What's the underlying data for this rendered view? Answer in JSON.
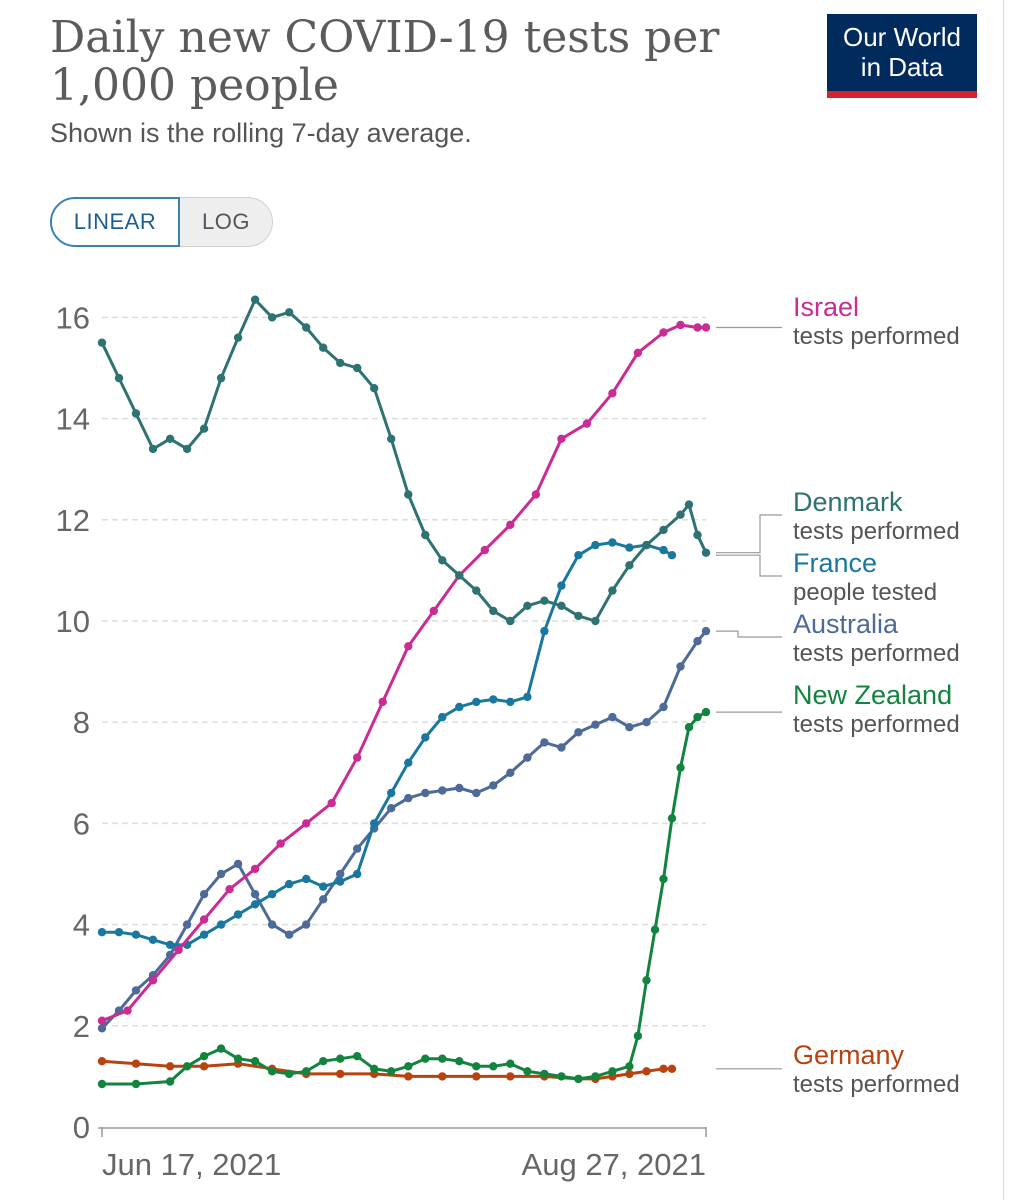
{
  "header": {
    "title_line1": "Daily new COVID-19 tests per",
    "title_line2": "1,000 people",
    "subtitle": "Shown is the rolling 7-day average.",
    "logo_line1": "Our World",
    "logo_line2": "in Data"
  },
  "scale_toggle": {
    "linear_label": "LINEAR",
    "log_label": "LOG",
    "selected": "LINEAR"
  },
  "colors": {
    "israel": "#c92c94",
    "denmark": "#2e7271",
    "france": "#1a78a0",
    "australia": "#4d6a98",
    "new_zealand": "#13843f",
    "germany": "#b8430f"
  },
  "chart_data": {
    "type": "line",
    "title": "Daily new COVID-19 tests per 1,000 people",
    "subtitle": "Shown is the rolling 7-day average.",
    "x_tick_labels": [
      "Jun 17, 2021",
      "Aug 27, 2021"
    ],
    "x_unit": "day index (0 = Jun 17, 2021; 71 = Aug 27, 2021)",
    "xlim": [
      0,
      71
    ],
    "ylim": [
      0,
      16.6
    ],
    "y_ticks": [
      0,
      2,
      4,
      6,
      8,
      10,
      12,
      14,
      16
    ],
    "grid": true,
    "legend_position": "right",
    "series": [
      {
        "key": "israel",
        "name": "Israel",
        "sublabel": "tests performed",
        "x": [
          0,
          3,
          6,
          9,
          12,
          15,
          18,
          21,
          24,
          27,
          30,
          33,
          36,
          39,
          42,
          45,
          48,
          51,
          54,
          57,
          60,
          63,
          66,
          68,
          70,
          71
        ],
        "values": [
          2.1,
          2.3,
          2.9,
          3.5,
          4.1,
          4.7,
          5.1,
          5.6,
          6.0,
          6.4,
          7.3,
          8.4,
          9.5,
          10.2,
          10.9,
          11.4,
          11.9,
          12.5,
          13.6,
          13.9,
          14.5,
          15.3,
          15.7,
          15.85,
          15.8,
          15.8
        ],
        "label_value": 15.8
      },
      {
        "key": "denmark",
        "name": "Denmark",
        "sublabel": "tests performed",
        "x": [
          0,
          2,
          4,
          6,
          8,
          10,
          12,
          14,
          16,
          18,
          20,
          22,
          24,
          26,
          28,
          30,
          32,
          34,
          36,
          38,
          40,
          42,
          44,
          46,
          48,
          50,
          52,
          54,
          56,
          58,
          60,
          62,
          64,
          66,
          68,
          69,
          70,
          71
        ],
        "values": [
          15.5,
          14.8,
          14.1,
          13.4,
          13.6,
          13.4,
          13.8,
          14.8,
          15.6,
          16.35,
          16.0,
          16.1,
          15.8,
          15.4,
          15.1,
          15.0,
          14.6,
          13.6,
          12.5,
          11.7,
          11.2,
          10.9,
          10.6,
          10.2,
          10.0,
          10.3,
          10.4,
          10.3,
          10.1,
          10.0,
          10.6,
          11.1,
          11.5,
          11.8,
          12.1,
          12.3,
          11.7,
          11.35
        ],
        "label_value": 11.35
      },
      {
        "key": "france",
        "name": "France",
        "sublabel": "people tested",
        "x": [
          0,
          2,
          4,
          6,
          8,
          10,
          12,
          14,
          16,
          18,
          20,
          22,
          24,
          26,
          28,
          30,
          32,
          34,
          36,
          38,
          40,
          42,
          44,
          46,
          48,
          50,
          52,
          54,
          56,
          58,
          60,
          62,
          64,
          66,
          67
        ],
        "values": [
          3.85,
          3.85,
          3.8,
          3.7,
          3.6,
          3.6,
          3.8,
          4.0,
          4.2,
          4.4,
          4.6,
          4.8,
          4.9,
          4.75,
          4.85,
          5.0,
          6.0,
          6.6,
          7.2,
          7.7,
          8.1,
          8.3,
          8.4,
          8.45,
          8.4,
          8.5,
          9.8,
          10.7,
          11.3,
          11.5,
          11.55,
          11.45,
          11.5,
          11.4,
          11.3
        ]
      },
      {
        "key": "australia",
        "name": "Australia",
        "sublabel": "tests performed",
        "x": [
          0,
          2,
          4,
          6,
          8,
          10,
          12,
          14,
          16,
          18,
          20,
          22,
          24,
          26,
          28,
          30,
          32,
          34,
          36,
          38,
          40,
          42,
          44,
          46,
          48,
          50,
          52,
          54,
          56,
          58,
          60,
          62,
          64,
          66,
          68,
          70,
          71
        ],
        "values": [
          1.95,
          2.3,
          2.7,
          3.0,
          3.4,
          4.0,
          4.6,
          5.0,
          5.2,
          4.6,
          4.0,
          3.8,
          4.0,
          4.5,
          5.0,
          5.5,
          5.9,
          6.3,
          6.5,
          6.6,
          6.65,
          6.7,
          6.6,
          6.75,
          7.0,
          7.3,
          7.6,
          7.5,
          7.8,
          7.95,
          8.1,
          7.9,
          8.0,
          8.3,
          9.1,
          9.6,
          9.8
        ],
        "label_value": 9.8
      },
      {
        "key": "new_zealand",
        "name": "New Zealand",
        "sublabel": "tests performed",
        "x": [
          0,
          4,
          8,
          10,
          12,
          14,
          16,
          18,
          20,
          22,
          24,
          26,
          28,
          30,
          32,
          34,
          36,
          38,
          40,
          42,
          44,
          46,
          48,
          50,
          52,
          54,
          56,
          58,
          60,
          62,
          63,
          64,
          65,
          66,
          67,
          68,
          69,
          70,
          71
        ],
        "values": [
          0.85,
          0.85,
          0.9,
          1.2,
          1.4,
          1.55,
          1.35,
          1.3,
          1.1,
          1.05,
          1.1,
          1.3,
          1.35,
          1.4,
          1.15,
          1.1,
          1.2,
          1.35,
          1.35,
          1.3,
          1.2,
          1.2,
          1.25,
          1.1,
          1.05,
          1.0,
          0.95,
          1.0,
          1.1,
          1.2,
          1.8,
          2.9,
          3.9,
          4.9,
          6.1,
          7.1,
          7.9,
          8.1,
          8.2
        ],
        "label_value": 8.2
      },
      {
        "key": "germany",
        "name": "Germany",
        "sublabel": "tests performed",
        "x": [
          0,
          4,
          8,
          12,
          16,
          20,
          24,
          28,
          32,
          36,
          40,
          44,
          48,
          52,
          56,
          58,
          60,
          62,
          64,
          66,
          67
        ],
        "values": [
          1.3,
          1.25,
          1.2,
          1.2,
          1.25,
          1.15,
          1.05,
          1.05,
          1.05,
          1.0,
          1.0,
          1.0,
          1.0,
          1.0,
          0.95,
          0.95,
          1.0,
          1.05,
          1.1,
          1.15,
          1.15
        ],
        "label_value": 1.15
      }
    ]
  }
}
